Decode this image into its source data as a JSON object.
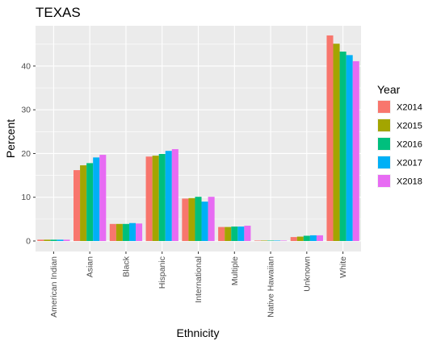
{
  "chart_data": {
    "type": "bar",
    "title": "TEXAS",
    "xlabel": "Ethnicity",
    "ylabel": "Percent",
    "ylim": [
      -2.4,
      49.2
    ],
    "yticks": [
      0,
      10,
      20,
      30,
      40
    ],
    "grid": true,
    "legend_title": "Year",
    "legend_position": "right",
    "categories": [
      "American Indian",
      "Asian",
      "Black",
      "Hispanic",
      "International",
      "Multiple",
      "Native Hawaiian",
      "Unknown",
      "White"
    ],
    "series": [
      {
        "name": "X2014",
        "color": "#F8766D",
        "values": [
          0.3,
          16.2,
          3.9,
          19.3,
          9.7,
          3.2,
          0.1,
          0.9,
          47.0
        ]
      },
      {
        "name": "X2015",
        "color": "#A3A500",
        "values": [
          0.3,
          17.3,
          3.9,
          19.5,
          9.8,
          3.2,
          0.1,
          1.0,
          45.1
        ]
      },
      {
        "name": "X2016",
        "color": "#00BF7D",
        "values": [
          0.3,
          17.8,
          3.9,
          19.9,
          10.1,
          3.3,
          0.1,
          1.2,
          43.3
        ]
      },
      {
        "name": "X2017",
        "color": "#00B0F6",
        "values": [
          0.3,
          19.1,
          4.1,
          20.6,
          9.0,
          3.3,
          0.1,
          1.3,
          42.5
        ]
      },
      {
        "name": "X2018",
        "color": "#E76BF3",
        "values": [
          0.3,
          19.7,
          4.0,
          21.0,
          10.1,
          3.5,
          0.1,
          1.3,
          41.1
        ]
      }
    ]
  }
}
